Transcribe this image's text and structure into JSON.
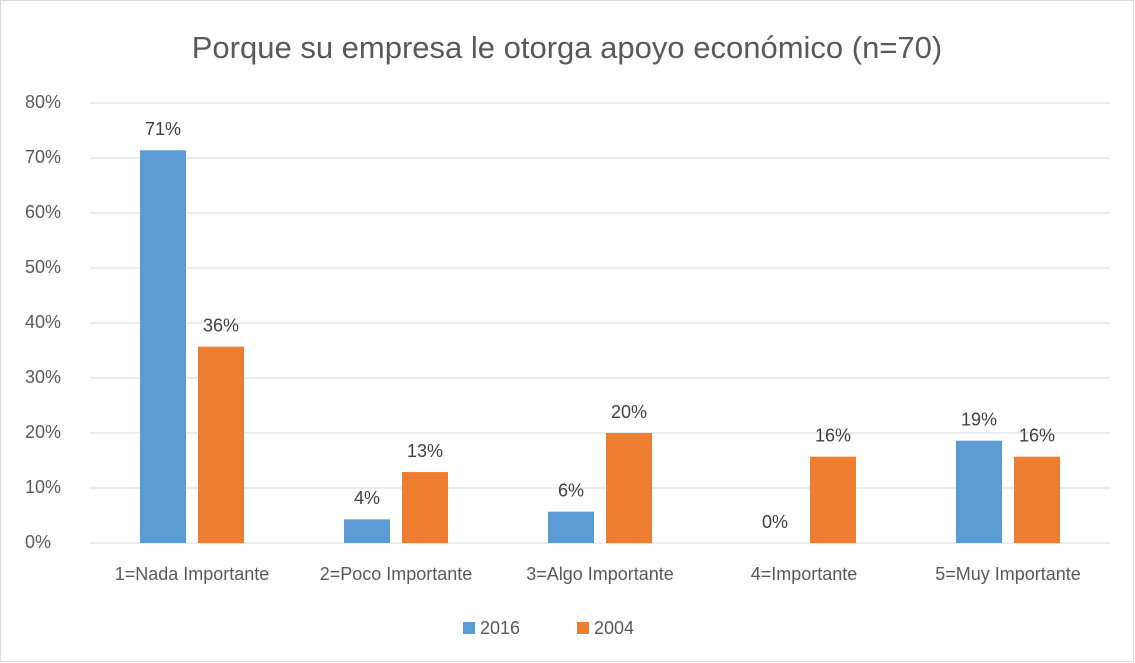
{
  "chart_data": {
    "type": "bar",
    "title": "Porque su empresa le otorga apoyo económico (n=70)",
    "categories": [
      "1=Nada Importante",
      "2=Poco Importante",
      "3=Algo Importante",
      "4=Importante",
      "5=Muy Importante"
    ],
    "series": [
      {
        "name": "2016",
        "color": "#5b9bd5",
        "values": [
          71.4,
          4.3,
          5.7,
          0,
          18.6
        ],
        "value_labels": [
          "71%",
          "4%",
          "6%",
          "0%",
          "19%"
        ]
      },
      {
        "name": "2004",
        "color": "#ed7d31",
        "values": [
          35.7,
          12.9,
          20,
          15.7,
          15.7
        ],
        "value_labels": [
          "36%",
          "13%",
          "20%",
          "16%",
          "16%"
        ]
      }
    ],
    "ylim": [
      0,
      80
    ],
    "yticks": [
      {
        "value": 0,
        "label": "0%"
      },
      {
        "value": 10,
        "label": "10%"
      },
      {
        "value": 20,
        "label": "20%"
      },
      {
        "value": 30,
        "label": "30%"
      },
      {
        "value": 40,
        "label": "40%"
      },
      {
        "value": 50,
        "label": "50%"
      },
      {
        "value": 60,
        "label": "60%"
      },
      {
        "value": 70,
        "label": "70%"
      },
      {
        "value": 80,
        "label": "80%"
      }
    ],
    "grid": true,
    "legend": "bottom"
  }
}
